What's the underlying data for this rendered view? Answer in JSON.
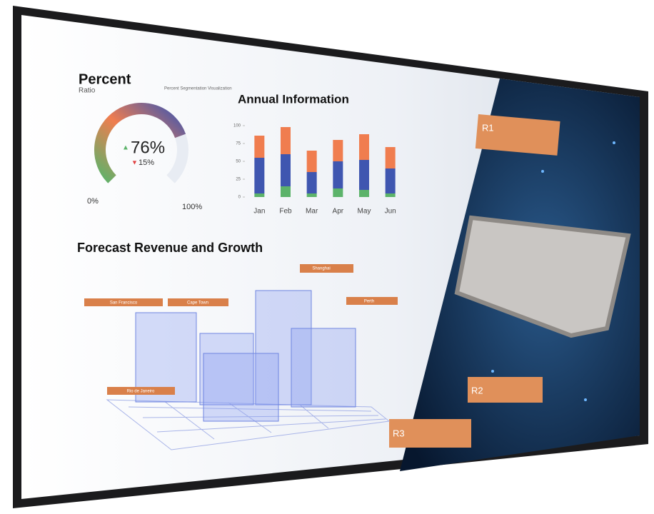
{
  "gauge": {
    "title": "Percent",
    "subtitle": "Ratio",
    "note": "Percent Segmentation Visualization",
    "value": 76,
    "value_label": "76%",
    "change": 15,
    "change_label": "15%",
    "ticks": [
      {
        "value": 0,
        "label": "0%"
      },
      {
        "value": 100,
        "label": "100%"
      }
    ]
  },
  "annual_chart": {
    "type": "bar",
    "title": "Annual Information",
    "categories": [
      "Jan",
      "Feb",
      "Mar",
      "Apr",
      "May",
      "Jun"
    ],
    "series": [
      {
        "color": "#5cb36a",
        "values": [
          5,
          15,
          5,
          12,
          10,
          5
        ]
      },
      {
        "color": "#3f56b0",
        "values": [
          50,
          45,
          30,
          38,
          42,
          35
        ]
      },
      {
        "color": "#f07d4f",
        "values": [
          31,
          38,
          30,
          30,
          36,
          30
        ]
      }
    ],
    "ylim": [
      0,
      100
    ],
    "yticks": [
      0,
      25,
      50,
      75,
      100
    ]
  },
  "forecast": {
    "title": "Forecast Revenue and Growth",
    "labels": [
      "Shanghai",
      "San Francisco",
      "Cape Town",
      "Perth",
      "Rio de Janeiro"
    ]
  },
  "chip": {
    "labels": [
      "R1",
      "R2",
      "R3"
    ]
  }
}
